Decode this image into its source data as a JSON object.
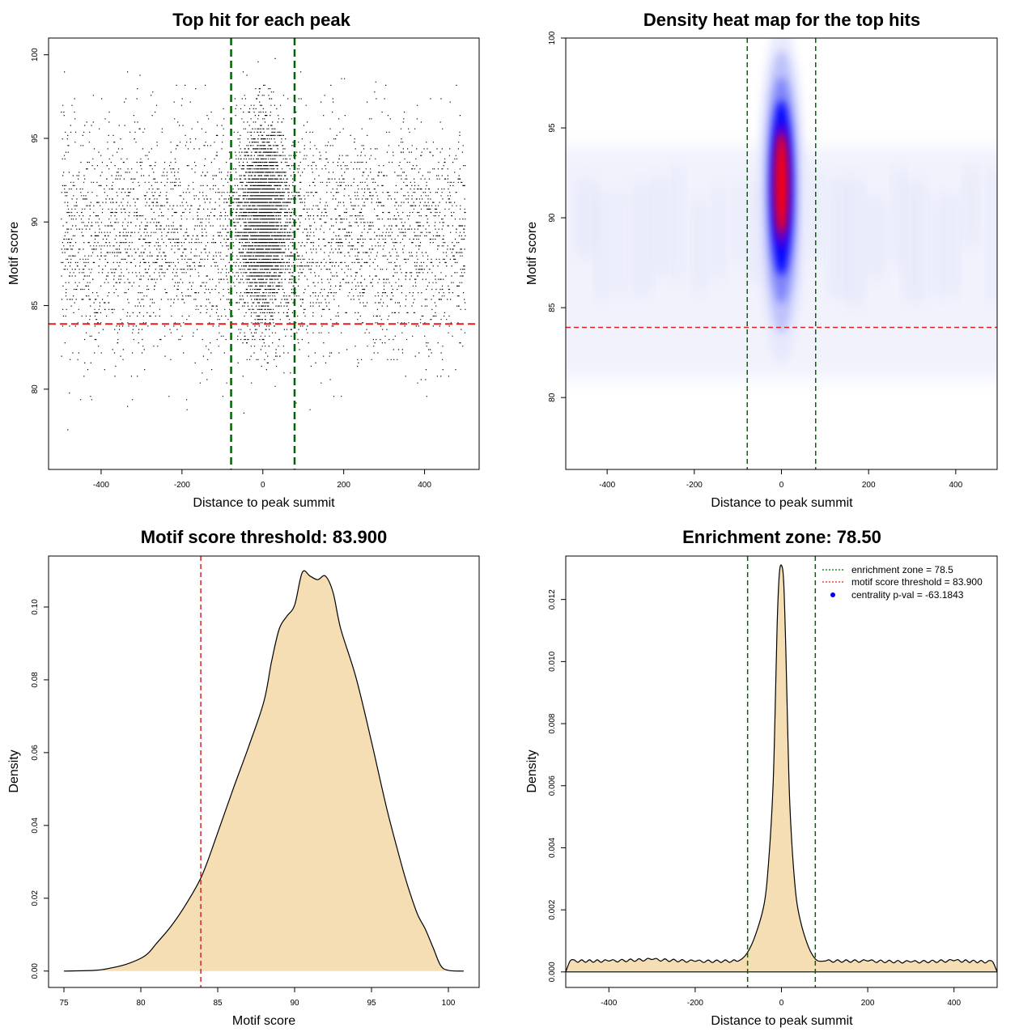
{
  "chart_data": [
    {
      "type": "scatter",
      "title": "Top hit for each peak",
      "xlabel": "Distance to peak summit",
      "ylabel": "Motif score",
      "xlim": [
        -530,
        535
      ],
      "ylim": [
        75.2,
        101.0
      ],
      "x_ticks": [
        "-400",
        "-200",
        "0",
        "200",
        "400"
      ],
      "y_ticks": [
        "80",
        "85",
        "90",
        "95",
        "100"
      ],
      "enrichment_zone": [
        -78.5,
        78.5
      ],
      "motif_threshold": 83.9,
      "x_range_points": [
        -500,
        500
      ],
      "colors": {
        "points": "#000000",
        "zone": "#006400",
        "threshold": "#e02020"
      }
    },
    {
      "type": "heatmap",
      "title": "Density heat map for the top hits",
      "xlabel": "Distance to peak summit",
      "ylabel": "Motif score",
      "xlim": [
        -495,
        495
      ],
      "ylim": [
        76.0,
        100.0
      ],
      "x_ticks": [
        "-400",
        "-200",
        "0",
        "200",
        "400"
      ],
      "y_ticks": [
        "80",
        "85",
        "90",
        "95",
        "100"
      ],
      "hotspot": {
        "x": 0,
        "y": 91.8
      },
      "enrichment_zone": [
        -78.5,
        78.5
      ],
      "motif_threshold": 83.9,
      "colors": {
        "low": "#ffffff",
        "mid": "#0000ff",
        "high": "#ff0000",
        "zone": "#006400",
        "threshold": "#e02020"
      }
    },
    {
      "type": "area",
      "title": "Motif score threshold: 83.900",
      "xlabel": "Motif score",
      "ylabel": "Density",
      "xlim": [
        74.0,
        102.0
      ],
      "ylim": [
        -0.0045,
        0.114
      ],
      "x_ticks": [
        "75",
        "80",
        "85",
        "90",
        "95",
        "100"
      ],
      "y_ticks": [
        "0.00",
        "0.02",
        "0.04",
        "0.06",
        "0.08",
        "0.10"
      ],
      "motif_threshold": 83.9,
      "x": [
        75,
        77,
        78,
        79,
        80,
        80.5,
        81,
        82,
        83,
        84,
        85,
        86,
        87,
        88,
        88.5,
        89,
        89.5,
        90,
        90.5,
        91,
        91.5,
        92,
        92.5,
        93,
        94,
        95,
        96,
        97,
        97.5,
        98,
        98.5,
        99,
        99.5,
        100,
        101
      ],
      "values": [
        0.0,
        0.0002,
        0.0008,
        0.0018,
        0.0035,
        0.005,
        0.0075,
        0.0125,
        0.0188,
        0.0265,
        0.038,
        0.05,
        0.0615,
        0.074,
        0.085,
        0.094,
        0.0975,
        0.1005,
        0.1095,
        0.1085,
        0.1075,
        0.1085,
        0.104,
        0.094,
        0.0805,
        0.063,
        0.0445,
        0.0285,
        0.0215,
        0.0155,
        0.0115,
        0.0065,
        0.0015,
        0.0002,
        0.0
      ],
      "colors": {
        "fill": "#f5deb3",
        "line": "#000000",
        "threshold": "#e02020"
      }
    },
    {
      "type": "area",
      "title": "Enrichment zone: 78.50",
      "xlabel": "Distance to peak summit",
      "ylabel": "Density",
      "xlim": [
        -500,
        500
      ],
      "ylim": [
        -0.0005,
        0.0134
      ],
      "x_ticks": [
        "-400",
        "-200",
        "0",
        "200",
        "400"
      ],
      "y_ticks": [
        "0.000",
        "0.002",
        "0.004",
        "0.006",
        "0.008",
        "0.010",
        "0.012"
      ],
      "x": [
        -500,
        -490,
        -400,
        -300,
        -200,
        -100,
        -80,
        -60,
        -40,
        -30,
        -20,
        -15,
        -10,
        -5,
        0,
        5,
        10,
        15,
        20,
        30,
        40,
        60,
        80,
        100,
        200,
        300,
        400,
        490,
        500
      ],
      "values": [
        0.0,
        0.00035,
        0.00035,
        0.0004,
        0.00034,
        0.00035,
        0.0006,
        0.0012,
        0.0022,
        0.0035,
        0.0058,
        0.0082,
        0.0112,
        0.0128,
        0.0131,
        0.0126,
        0.0105,
        0.0075,
        0.0052,
        0.003,
        0.0019,
        0.0009,
        0.0004,
        0.00035,
        0.00035,
        0.00032,
        0.00036,
        0.00032,
        0.0
      ],
      "enrichment_zone": [
        -78.5,
        78.5
      ],
      "legend": {
        "position": "top-right",
        "entries": [
          "enrichment zone = 78.5",
          "motif score threshold = 83.900",
          "centrality p-val = -63.1843"
        ]
      },
      "colors": {
        "fill": "#f5deb3",
        "line": "#000000",
        "zone": "#006400",
        "threshold": "#e02020",
        "pval": "#0000ff"
      }
    }
  ]
}
